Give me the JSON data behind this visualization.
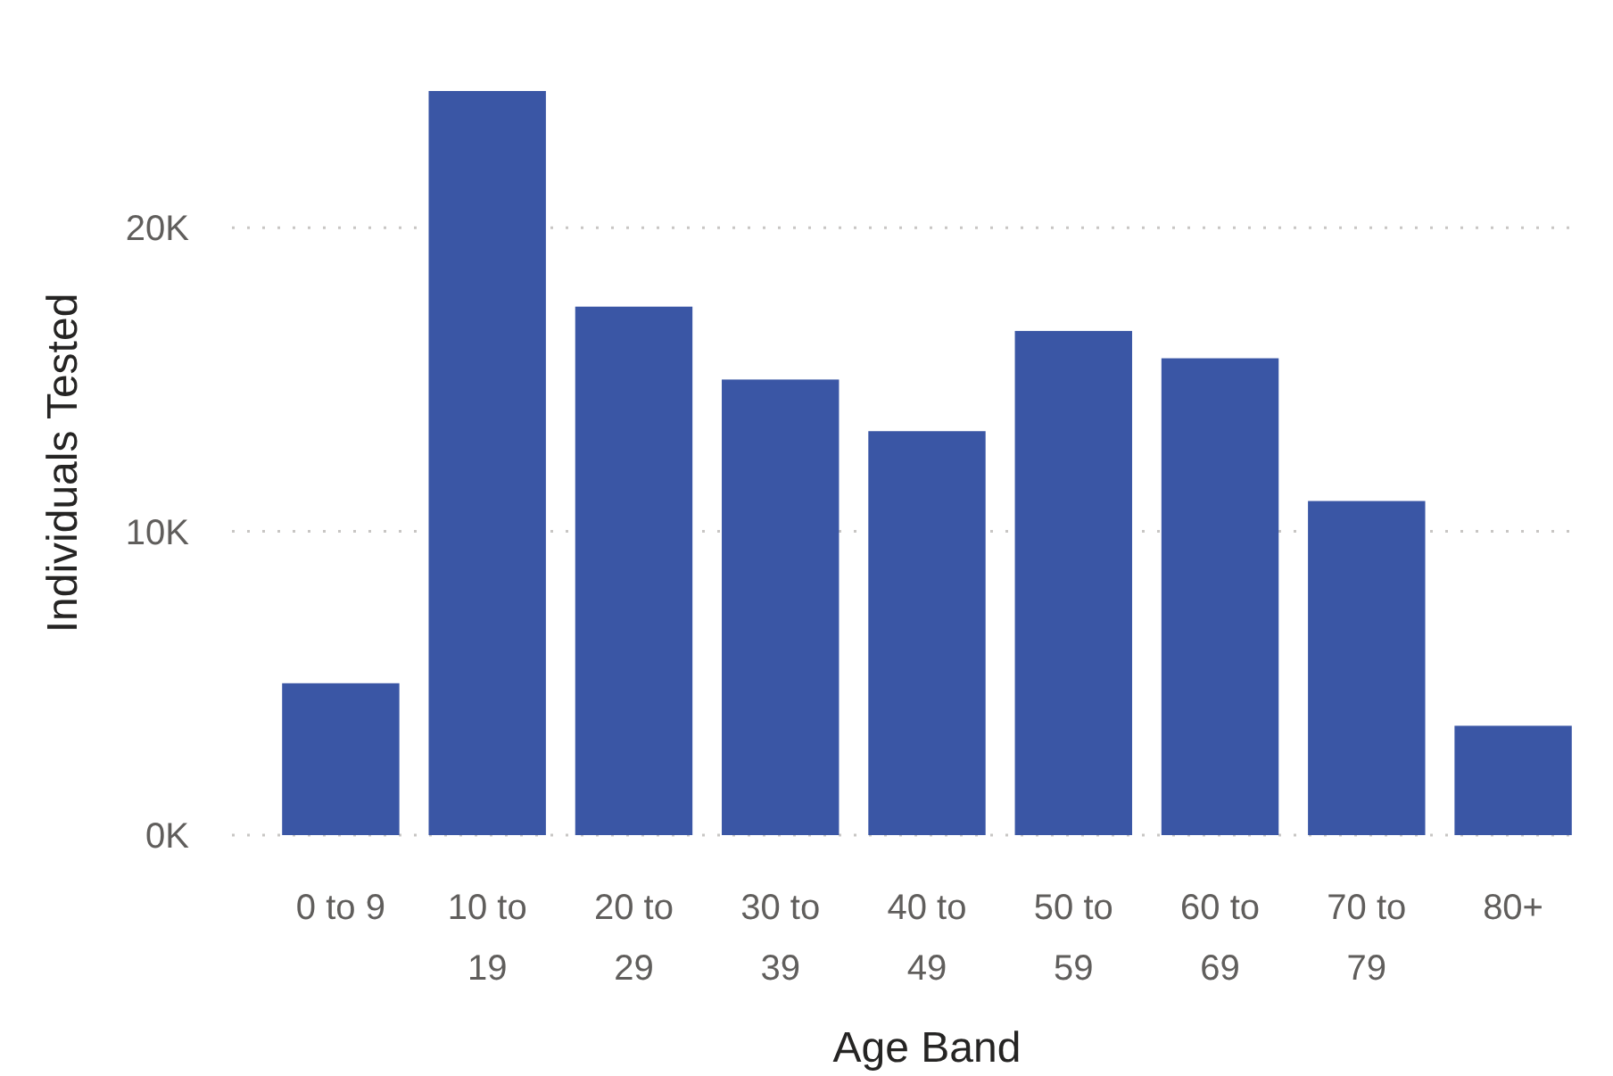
{
  "chart_data": {
    "type": "bar",
    "xlabel": "Age Band",
    "ylabel": "Individuals Tested",
    "categories": [
      "0 to 9",
      "10 to 19",
      "20 to 29",
      "30 to 39",
      "40 to 49",
      "50 to 59",
      "60 to 69",
      "70 to 79",
      "80+"
    ],
    "values": [
      5000,
      24500,
      17400,
      15000,
      13300,
      16600,
      15700,
      11000,
      3600
    ],
    "color": "#3a56a5",
    "ylim": [
      0,
      24500
    ],
    "yticks": [
      {
        "value": 0,
        "label": "0K"
      },
      {
        "value": 10000,
        "label": "10K"
      },
      {
        "value": 20000,
        "label": "20K"
      }
    ],
    "grid": "y"
  }
}
